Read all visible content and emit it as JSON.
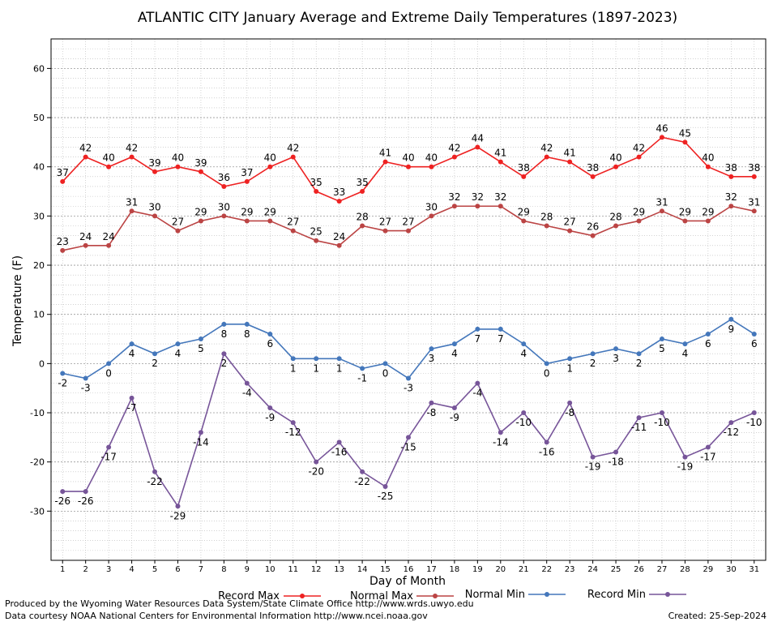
{
  "chart_data": {
    "type": "line",
    "title": "ATLANTIC CITY January Average and Extreme Daily Temperatures (1897-2023)",
    "xlabel": "Day of Month",
    "ylabel": "Temperature (F)",
    "ylim": [
      -40,
      66
    ],
    "xlim": [
      0.5,
      31.5
    ],
    "yticks": [
      -30,
      -20,
      -10,
      0,
      10,
      20,
      30,
      40,
      50,
      60
    ],
    "x": [
      1,
      2,
      3,
      4,
      5,
      6,
      7,
      8,
      9,
      10,
      11,
      12,
      13,
      14,
      15,
      16,
      17,
      18,
      19,
      20,
      21,
      22,
      23,
      24,
      25,
      26,
      27,
      28,
      29,
      30,
      31
    ],
    "grid": true,
    "legend_position": "bottom",
    "series": [
      {
        "name": "Record Max",
        "color": "#ee2222",
        "values": [
          37,
          42,
          40,
          42,
          39,
          40,
          39,
          36,
          37,
          40,
          42,
          35,
          33,
          35,
          41,
          40,
          40,
          42,
          44,
          41,
          38,
          42,
          41,
          38,
          40,
          42,
          46,
          45,
          40,
          38,
          38
        ],
        "label_position": "above"
      },
      {
        "name": "Normal Max",
        "color": "#bb4444",
        "values": [
          23,
          24,
          24,
          31,
          30,
          27,
          29,
          30,
          29,
          29,
          27,
          25,
          24,
          28,
          27,
          27,
          30,
          32,
          32,
          32,
          29,
          28,
          27,
          26,
          28,
          29,
          31,
          29,
          29,
          32,
          31
        ],
        "label_position": "above"
      },
      {
        "name": "Normal Min",
        "color": "#4477bb",
        "values": [
          -2,
          -3,
          0,
          4,
          2,
          4,
          5,
          8,
          8,
          6,
          1,
          1,
          1,
          -1,
          0,
          -3,
          3,
          4,
          7,
          7,
          4,
          0,
          1,
          2,
          3,
          2,
          5,
          4,
          6,
          9,
          6
        ],
        "label_position": "below"
      },
      {
        "name": "Record Min",
        "color": "#775599",
        "values": [
          -26,
          -26,
          -17,
          -7,
          -22,
          -29,
          -14,
          2,
          -4,
          -9,
          -12,
          -20,
          -16,
          -22,
          -25,
          -15,
          -8,
          -9,
          -4,
          -14,
          -10,
          -16,
          -8,
          -19,
          -18,
          -11,
          -10,
          -19,
          -17,
          -12,
          -10
        ],
        "label_position": "below"
      }
    ]
  },
  "footer": {
    "produced_by": "Produced by the Wyoming Water Resources Data System/State Climate Office http://www.wrds.uwyo.edu",
    "data_courtesy": "Data courtesy NOAA National Centers for Environmental Information http://www.ncei.noaa.gov",
    "created": "Created: 25-Sep-2024"
  }
}
